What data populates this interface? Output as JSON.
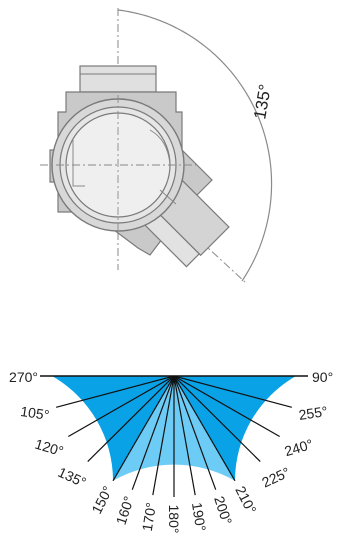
{
  "fitting_diagram": {
    "angle_label": "135°",
    "colors": {
      "outline": "#7a7a7a",
      "fill": "#d9d9d9",
      "body": "#c6c6c6",
      "light": "#ececec"
    }
  },
  "angle_chart": {
    "colors": {
      "dark_sector": "#0aa2e6",
      "light_sector": "#6cccf5",
      "line": "#111111"
    },
    "light_sector_range": {
      "from_label": "210°",
      "to_label": "150°"
    },
    "labels": [
      {
        "text": "270°",
        "angle": 270
      },
      {
        "text": "255°",
        "angle": 255
      },
      {
        "text": "240°",
        "angle": 240
      },
      {
        "text": "225°",
        "angle": 225
      },
      {
        "text": "210°",
        "angle": 210
      },
      {
        "text": "200°",
        "angle": 200
      },
      {
        "text": "190°",
        "angle": 190
      },
      {
        "text": "180°",
        "angle": 180
      },
      {
        "text": "170°",
        "angle": 170
      },
      {
        "text": "160°",
        "angle": 160
      },
      {
        "text": "150°",
        "angle": 150
      },
      {
        "text": "135°",
        "angle": 135
      },
      {
        "text": "120°",
        "angle": 120
      },
      {
        "text": "105°",
        "angle": 105
      },
      {
        "text": "90°",
        "angle": 90
      }
    ]
  }
}
